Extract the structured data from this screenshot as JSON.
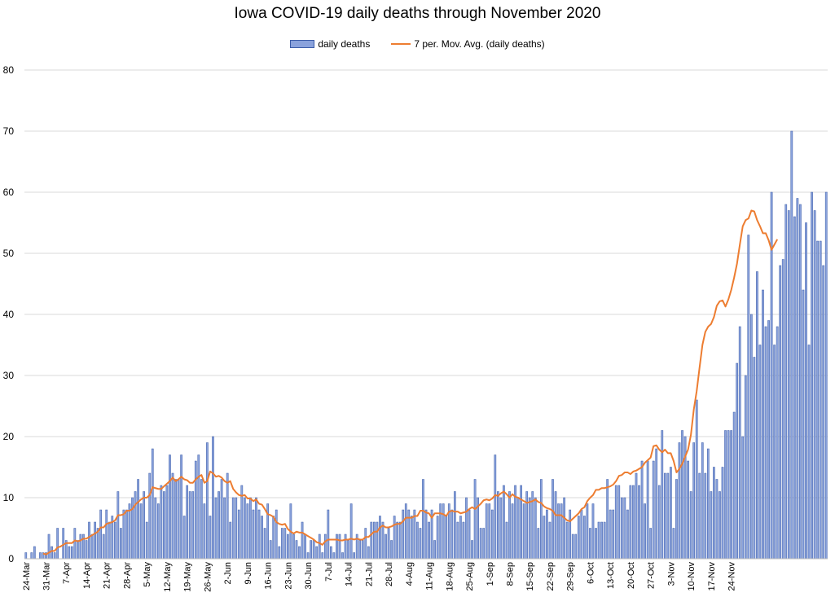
{
  "chart_data": {
    "type": "bar",
    "title": "Iowa COVID-19 daily deaths through November 2020",
    "xlabel": "",
    "ylabel": "",
    "ylim": [
      0,
      80
    ],
    "yticks": [
      "0",
      "10",
      "20",
      "30",
      "40",
      "50",
      "60",
      "70",
      "80"
    ],
    "grid": true,
    "legend_position": "top",
    "x_start": "2020-03-24",
    "tick_labels": [
      "24-Mar",
      "31-Mar",
      "7-Apr",
      "14-Apr",
      "21-Apr",
      "28-Apr",
      "5-May",
      "12-May",
      "19-May",
      "26-May",
      "2-Jun",
      "9-Jun",
      "16-Jun",
      "23-Jun",
      "30-Jun",
      "7-Jul",
      "14-Jul",
      "21-Jul",
      "28-Jul",
      "4-Aug",
      "11-Aug",
      "18-Aug",
      "25-Aug",
      "1-Sep",
      "8-Sep",
      "15-Sep",
      "22-Sep",
      "29-Sep",
      "6-Oct",
      "13-Oct",
      "20-Oct",
      "27-Oct",
      "3-Nov",
      "10-Nov",
      "17-Nov",
      "24-Nov"
    ],
    "series": [
      {
        "name": "daily deaths",
        "color": "#8aa2dc",
        "edge": "#3b5ca8",
        "values": [
          1,
          0,
          1,
          2,
          0,
          1,
          1,
          1,
          4,
          2,
          1,
          5,
          0,
          5,
          3,
          2,
          2,
          5,
          3,
          4,
          4,
          3,
          6,
          4,
          6,
          5,
          8,
          4,
          8,
          6,
          7,
          6,
          11,
          5,
          8,
          8,
          9,
          10,
          11,
          13,
          9,
          11,
          6,
          14,
          18,
          10,
          9,
          12,
          11,
          12,
          17,
          14,
          13,
          13,
          17,
          7,
          12,
          11,
          11,
          16,
          17,
          13,
          9,
          19,
          7,
          20,
          10,
          11,
          13,
          10,
          14,
          6,
          10,
          10,
          8,
          12,
          10,
          9,
          10,
          8,
          10,
          8,
          7,
          5,
          9,
          3,
          7,
          8,
          2,
          5,
          5,
          4,
          9,
          4,
          3,
          2,
          6,
          4,
          1,
          3,
          3,
          2,
          4,
          1,
          4,
          8,
          2,
          1,
          4,
          4,
          1,
          4,
          3,
          9,
          1,
          4,
          3,
          3,
          5,
          2,
          6,
          6,
          6,
          7,
          6,
          4,
          5,
          3,
          7,
          6,
          6,
          8,
          9,
          8,
          7,
          8,
          6,
          5,
          13,
          8,
          6,
          8,
          3,
          7,
          9,
          9,
          7,
          9,
          8,
          11,
          6,
          7,
          6,
          10,
          8,
          3,
          13,
          10,
          5,
          5,
          9,
          9,
          8,
          17,
          11,
          10,
          12,
          6,
          11,
          9,
          12,
          10,
          12,
          9,
          11,
          10,
          11,
          10,
          5,
          13,
          7,
          8,
          6,
          13,
          11,
          9,
          9,
          10,
          6,
          8,
          4,
          4,
          7,
          8,
          7,
          9,
          5,
          9,
          5,
          6,
          6,
          6,
          13,
          8,
          8,
          12,
          12,
          10,
          10,
          8,
          12,
          12,
          14,
          12,
          16,
          9,
          16,
          5,
          16,
          18,
          12,
          21,
          14,
          14,
          15,
          5,
          13,
          19,
          21,
          20,
          16,
          11,
          19,
          26,
          14,
          19,
          14,
          18,
          11,
          15,
          13,
          11,
          15,
          21,
          21,
          21,
          24,
          32,
          38,
          20,
          30,
          53,
          40,
          33,
          47,
          35,
          44,
          38,
          39,
          60,
          35,
          38,
          48,
          49,
          58,
          57,
          70,
          56,
          59,
          58,
          44,
          55,
          35,
          60,
          57,
          52,
          52,
          48,
          60
        ]
      },
      {
        "name": "7 per. Mov. Avg. (daily deaths)",
        "color": "#ed7d31",
        "values": [
          null,
          null,
          null,
          null,
          null,
          null,
          0.86,
          0.71,
          1.0,
          1.29,
          1.29,
          1.86,
          2.0,
          2.29,
          2.57,
          2.57,
          2.57,
          3.0,
          2.86,
          3.0,
          3.29,
          3.29,
          3.57,
          3.86,
          4.14,
          4.43,
          5.14,
          5.14,
          5.71,
          5.86,
          6.0,
          6.29,
          7.14,
          7.14,
          7.29,
          7.86,
          7.86,
          8.14,
          8.86,
          9.29,
          9.71,
          10.0,
          10.0,
          10.43,
          11.71,
          11.57,
          11.43,
          11.43,
          11.86,
          12.29,
          12.71,
          13.29,
          12.71,
          13.0,
          13.43,
          13.0,
          12.86,
          12.43,
          12.43,
          13.0,
          13.43,
          13.71,
          12.43,
          12.71,
          14.29,
          14.0,
          13.43,
          13.57,
          13.29,
          12.71,
          12.43,
          12.71,
          11.43,
          10.86,
          10.43,
          10.29,
          10.43,
          9.86,
          9.86,
          9.43,
          9.71,
          9.0,
          8.86,
          8.14,
          7.29,
          7.14,
          6.86,
          6.0,
          5.71,
          5.57,
          5.71,
          4.86,
          4.43,
          4.14,
          4.43,
          4.29,
          4.29,
          4.0,
          3.71,
          3.43,
          3.14,
          2.71,
          2.57,
          2.29,
          2.86,
          3.14,
          3.14,
          3.14,
          3.14,
          3.0,
          3.0,
          3.14,
          3.14,
          3.29,
          3.14,
          3.29,
          3.14,
          3.14,
          3.57,
          3.57,
          4.0,
          4.43,
          4.43,
          5.14,
          5.43,
          5.14,
          5.14,
          5.29,
          5.57,
          5.71,
          5.71,
          6.14,
          6.71,
          6.71,
          6.71,
          7.0,
          7.0,
          7.86,
          7.86,
          7.57,
          7.43,
          6.71,
          7.43,
          7.43,
          7.43,
          7.29,
          7.0,
          7.71,
          7.86,
          7.71,
          7.71,
          7.43,
          7.57,
          7.71,
          8.14,
          8.43,
          8.14,
          8.57,
          9.0,
          9.57,
          9.71,
          9.57,
          9.86,
          10.43,
          10.29,
          10.71,
          11.0,
          10.57,
          10.0,
          10.57,
          10.14,
          10.0,
          9.71,
          9.43,
          9.14,
          9.29,
          9.43,
          9.71,
          9.29,
          9.14,
          8.57,
          8.29,
          8.14,
          7.86,
          7.14,
          7.14,
          7.14,
          6.71,
          6.29,
          6.14,
          6.57,
          7.0,
          7.43,
          8.14,
          8.43,
          9.43,
          10.0,
          10.43,
          11.29,
          11.29,
          11.57,
          11.57,
          11.71,
          11.86,
          12.14,
          12.71,
          13.57,
          13.71,
          14.14,
          14.14,
          13.86,
          14.29,
          14.43,
          14.71,
          15.0,
          15.71,
          16.14,
          16.57,
          18.43,
          18.57,
          17.86,
          17.43,
          17.86,
          17.29,
          17.29,
          16.0,
          14.14,
          14.71,
          15.57,
          16.71,
          17.86,
          20.29,
          24.43,
          27.43,
          31.29,
          35.0,
          37.14,
          38.0,
          38.43,
          39.57,
          41.43,
          42.14,
          42.29,
          41.29,
          42.43,
          44.0,
          46.0,
          48.29,
          51.43,
          54.43,
          55.43,
          55.71,
          57.0,
          56.86,
          55.43,
          54.43,
          53.29,
          53.29,
          52.14,
          50.57,
          51.43,
          52.29
        ]
      }
    ]
  }
}
